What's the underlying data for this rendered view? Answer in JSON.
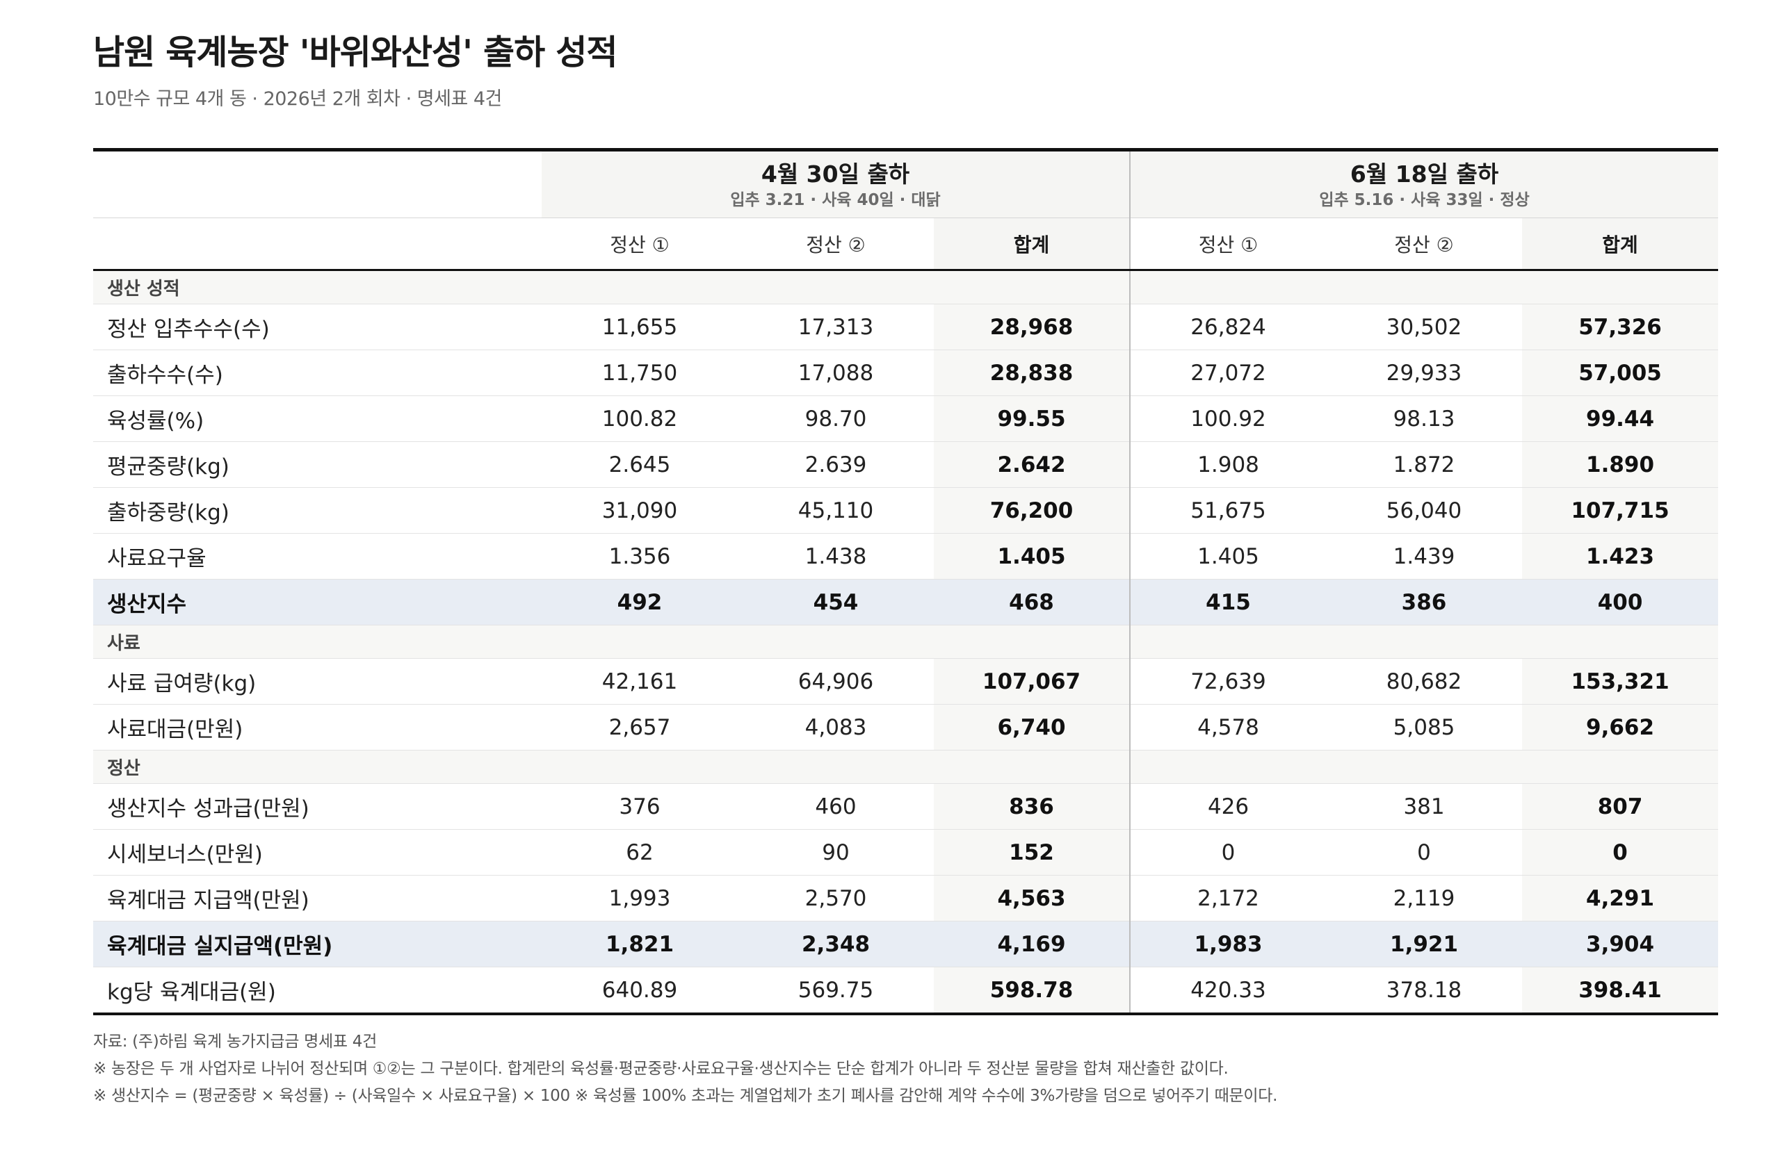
{
  "title": "남원 육계농장 '바위와산성' 출하 성적",
  "subtitle": "10만수 규모 4개 동 · 2026년 2개 회차 · 명세표 4건",
  "shipments": [
    {
      "title": "4월 30일 출하",
      "meta": "입추 3.21 · 사육 40일 · 대닭"
    },
    {
      "title": "6월 18일 출하",
      "meta": "입추 5.16 · 사육 33일 · 정상"
    }
  ],
  "columns": {
    "settle1": "정산 ①",
    "settle2": "정산 ②",
    "total": "합계"
  },
  "sections": [
    {
      "name": "생산 성적",
      "rows": [
        {
          "label": "정산 입추수수(수)",
          "v": [
            "11,655",
            "17,313",
            "28,968",
            "26,824",
            "30,502",
            "57,326"
          ]
        },
        {
          "label": "출하수수(수)",
          "v": [
            "11,750",
            "17,088",
            "28,838",
            "27,072",
            "29,933",
            "57,005"
          ]
        },
        {
          "label": "육성률(%)",
          "v": [
            "100.82",
            "98.70",
            "99.55",
            "100.92",
            "98.13",
            "99.44"
          ]
        },
        {
          "label": "평균중량(kg)",
          "v": [
            "2.645",
            "2.639",
            "2.642",
            "1.908",
            "1.872",
            "1.890"
          ]
        },
        {
          "label": "출하중량(kg)",
          "v": [
            "31,090",
            "45,110",
            "76,200",
            "51,675",
            "56,040",
            "107,715"
          ]
        },
        {
          "label": "사료요구율",
          "v": [
            "1.356",
            "1.438",
            "1.405",
            "1.405",
            "1.439",
            "1.423"
          ]
        },
        {
          "label": "생산지수",
          "v": [
            "492",
            "454",
            "468",
            "415",
            "386",
            "400"
          ],
          "highlight": true
        }
      ]
    },
    {
      "name": "사료",
      "rows": [
        {
          "label": "사료 급여량(kg)",
          "v": [
            "42,161",
            "64,906",
            "107,067",
            "72,639",
            "80,682",
            "153,321"
          ]
        },
        {
          "label": "사료대금(만원)",
          "v": [
            "2,657",
            "4,083",
            "6,740",
            "4,578",
            "5,085",
            "9,662"
          ]
        }
      ]
    },
    {
      "name": "정산",
      "rows": [
        {
          "label": "생산지수 성과급(만원)",
          "v": [
            "376",
            "460",
            "836",
            "426",
            "381",
            "807"
          ]
        },
        {
          "label": "시세보너스(만원)",
          "v": [
            "62",
            "90",
            "152",
            "0",
            "0",
            "0"
          ]
        },
        {
          "label": "육계대금 지급액(만원)",
          "v": [
            "1,993",
            "2,570",
            "4,563",
            "2,172",
            "2,119",
            "4,291"
          ]
        },
        {
          "label": "육계대금 실지급액(만원)",
          "v": [
            "1,821",
            "2,348",
            "4,169",
            "1,983",
            "1,921",
            "3,904"
          ],
          "highlight": true
        },
        {
          "label": "kg당 육계대금(원)",
          "v": [
            "640.89",
            "569.75",
            "598.78",
            "420.33",
            "378.18",
            "398.41"
          ]
        }
      ]
    }
  ],
  "notes": [
    "자료: (주)하림 육계 농가지급금 명세표 4건",
    "※ 농장은 두 개 사업자로 나뉘어 정산되며 ①②는 그 구분이다. 합계란의 육성률·평균중량·사료요구율·생산지수는 단순 합계가 아니라 두 정산분 물량을 합쳐 재산출한 값이다.",
    "※ 생산지수 = (평균중량 × 육성률) ÷ (사육일수 × 사료요구율) × 100    ※ 육성률 100% 초과는 계열업체가 초기 폐사를 감안해 계약 수수에 3%가량을 덤으로 넣어주기 때문이다."
  ]
}
